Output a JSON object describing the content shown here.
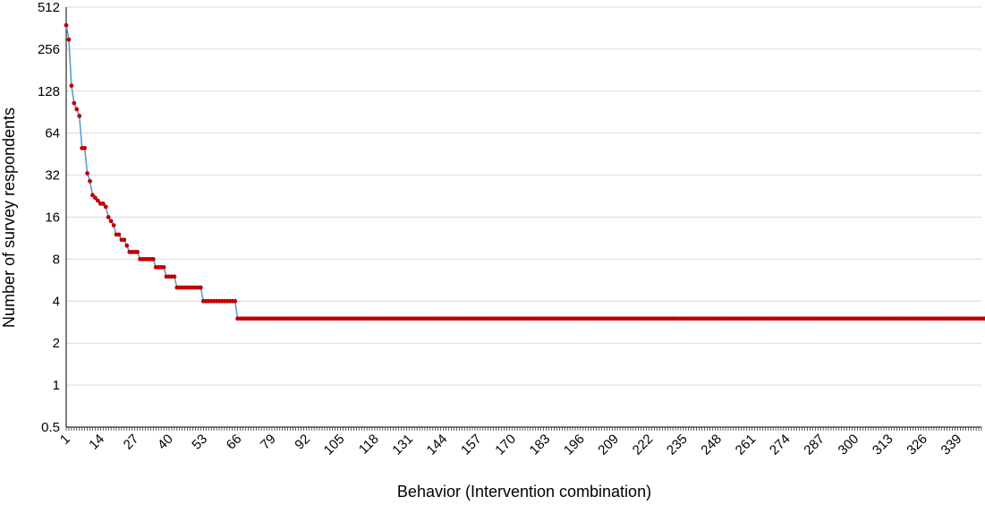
{
  "chart_data": {
    "type": "line",
    "title": "",
    "xlabel": "Behavior (Intervention combination)",
    "ylabel": "Number of survey respondents",
    "y_scale": "log2",
    "ylim": [
      0.5,
      512
    ],
    "y_ticks": [
      "0.5",
      "1",
      "2",
      "4",
      "8",
      "16",
      "32",
      "64",
      "128",
      "256",
      "512"
    ],
    "xlim": [
      1,
      348
    ],
    "x_ticks": [
      "1",
      "14",
      "27",
      "40",
      "53",
      "66",
      "79",
      "92",
      "105",
      "118",
      "131",
      "144",
      "157",
      "170",
      "183",
      "196",
      "209",
      "222",
      "235",
      "248",
      "261",
      "274",
      "287",
      "300",
      "313",
      "326",
      "339"
    ],
    "grid": true,
    "legend": "none",
    "colors": {
      "line": "#5b9bd5",
      "marker": "#c00000",
      "grid": "#d9d9d9",
      "axis": "#000000"
    },
    "series": [
      {
        "values": [
          380,
          300,
          140,
          105,
          95,
          85,
          50,
          50,
          33,
          29,
          23,
          22,
          21,
          20,
          20,
          19,
          16,
          15,
          14,
          12,
          12,
          11,
          11,
          10,
          9,
          9,
          9,
          9,
          8,
          8,
          8,
          8,
          8,
          8,
          7,
          7,
          7,
          7,
          6,
          6,
          6,
          6,
          5,
          5,
          5,
          5,
          5,
          5,
          5,
          5,
          5,
          5,
          4,
          4,
          4,
          4,
          4,
          4,
          4,
          4,
          4,
          4,
          4,
          4,
          4,
          3,
          3,
          3,
          3,
          3,
          3,
          3,
          3,
          3,
          3,
          3,
          3,
          3,
          3,
          3,
          3,
          3,
          3,
          3,
          3,
          3,
          3,
          3,
          3,
          3,
          3,
          3,
          3,
          3,
          3,
          3,
          3,
          3,
          3,
          3,
          3,
          3,
          3,
          3,
          3,
          3,
          3,
          3,
          3,
          3,
          3,
          3,
          3,
          3,
          3,
          3,
          3,
          3,
          3,
          3,
          3,
          3,
          3,
          3,
          3,
          3,
          3,
          3,
          3,
          3,
          3,
          3,
          3,
          3,
          3,
          3,
          3,
          3,
          3,
          3,
          3,
          3,
          3,
          3,
          3,
          3,
          3,
          3,
          3,
          3,
          3,
          3,
          3,
          3,
          3,
          3,
          3,
          3,
          3,
          3,
          3,
          3,
          3,
          3,
          3,
          3,
          3,
          3,
          3,
          3,
          3,
          3,
          3,
          3,
          3,
          3,
          3,
          3,
          3,
          3,
          3,
          3,
          3,
          3,
          3,
          3,
          3,
          3,
          3,
          3,
          3,
          3,
          3,
          3,
          3,
          3,
          3,
          3,
          3,
          3,
          3,
          3,
          3,
          3,
          3,
          3,
          3,
          3,
          3,
          3,
          3,
          3,
          3,
          3,
          3,
          3,
          3,
          3,
          3,
          3,
          3,
          3,
          3,
          3,
          3,
          3,
          3,
          3,
          3,
          3,
          3,
          3,
          3,
          3,
          3,
          3,
          3,
          3,
          3,
          3,
          3,
          3,
          3,
          3,
          3,
          3,
          3,
          3,
          3,
          3,
          3,
          3,
          3,
          3,
          3,
          3,
          3,
          3,
          3,
          3,
          3,
          3,
          3,
          3,
          3,
          3,
          3,
          3,
          3,
          3,
          3,
          3,
          3,
          3,
          3,
          3,
          3,
          3,
          3,
          3,
          3,
          3,
          3,
          3,
          3,
          3,
          3,
          3,
          3,
          3,
          3,
          3,
          3,
          3,
          3,
          3,
          3,
          3,
          3,
          3,
          3,
          3,
          3,
          3,
          3,
          3,
          3,
          3,
          3,
          3,
          3,
          3,
          3,
          3,
          3,
          3,
          3,
          3,
          3,
          3,
          3,
          3,
          3,
          3,
          3,
          3,
          3,
          3,
          3,
          3,
          3,
          3,
          3,
          3,
          3,
          3,
          3,
          3,
          3,
          3,
          3,
          3,
          3,
          3,
          3,
          3,
          3,
          3,
          3,
          3,
          3,
          3,
          3,
          3,
          3,
          3,
          3,
          3
        ]
      }
    ]
  }
}
